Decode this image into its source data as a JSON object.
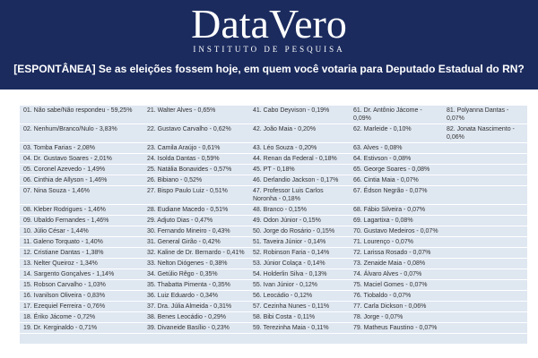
{
  "header": {
    "brand": "DataVero",
    "tagline": "INSTITUTO DE PESQUISA",
    "question": "[ESPONTÂNEA] Se as eleições fossem hoje, em quem você votaria para Deputado Estadual do RN?"
  },
  "table": {
    "rows": [
      [
        "01. Não sabe/Não respondeu - 59,25%",
        "21. Walter Alves - 0,65%",
        "41. Cabo Deyvison - 0,19%",
        "61. Dr. Antônio Jácome - 0,09%",
        "81. Polyanna Dantas - 0,07%"
      ],
      [
        "02. Nenhum/Branco/Nulo - 3,83%",
        "22. Gustavo Carvalho - 0,62%",
        "42. João Maia - 0,20%",
        "62. Marleide - 0,10%",
        "82. Jonata Nascimento - 0,06%"
      ],
      [
        "03. Tomba Farias - 2,08%",
        "23. Camila Araújo - 0,61%",
        "43. Léo Souza - 0,20%",
        "63. Alves - 0,08%",
        null
      ],
      [
        "04. Dr. Gustavo Soares - 2,01%",
        "24. Isolda Dantas - 0,59%",
        "44. Renan da Federal - 0,18%",
        "64. Estivson - 0,08%",
        null
      ],
      [
        "05. Coronel Azevedo - 1,49%",
        "25. Natália Bonavides - 0,57%",
        "45. PT - 0,18%",
        "65. George Soares - 0,08%",
        null
      ],
      [
        "06. Cinthia de Allyson - 1,46%",
        "26. Bibiano - 0,52%",
        "46. Derlandio Jackson - 0,17%",
        "66. Cintia Maia - 0,07%",
        null
      ],
      [
        "07. Nina Souza - 1,46%",
        "27. Bispo Paulo Luiz - 0,51%",
        "47. Professor Luis Carlos Noronha - 0,18%",
        "67. Édson Negrão - 0,07%",
        null
      ],
      [
        "08. Kleber Rodrigues - 1,46%",
        "28. Eudiane Macedo - 0,51%",
        "48. Branco - 0,15%",
        "68. Fábio Silveira - 0,07%",
        null
      ],
      [
        "09. Ubaldo Fernandes - 1,46%",
        "29. Adjuto Dias - 0,47%",
        "49. Odon Júnior - 0,15%",
        "69. Lagartixa - 0,08%",
        null
      ],
      [
        "10. Júlio César - 1,44%",
        "30. Fernando Mineiro - 0,43%",
        "50. Jorge do Rosário - 0,15%",
        "70. Gustavo Medeiros - 0,07%",
        null
      ],
      [
        "11. Galeno Torquato - 1,40%",
        "31. General Girão - 0,42%",
        "51. Taveira Júnior - 0,14%",
        "71. Lourenço - 0,07%",
        null
      ],
      [
        "12. Cristiane Dantas - 1,38%",
        "32. Kaline de Dr. Bernardo - 0,41%",
        "52. Robinson Faria - 0,14%",
        "72. Larissa Rosado - 0,07%",
        null
      ],
      [
        "13. Nelter Queiroz - 1,34%",
        "33. Nelton Diógenes - 0,38%",
        "53. Júnior Colaça - 0,14%",
        "73. Zenaide Maia - 0,08%",
        null
      ],
      [
        "14. Sargento Gonçalves - 1,14%",
        "34. Getúlio Rêgo - 0,35%",
        "54. Holderlin Silva - 0,13%",
        "74. Álvaro Alves - 0,07%",
        null
      ],
      [
        "15. Robson Carvalho - 1,03%",
        "35. Thabatta Pimenta - 0,35%",
        "55. Ivan Júnior - 0,12%",
        "75. Maciel Gomes - 0,07%",
        null
      ],
      [
        "16. Ivanilson Oliveira - 0,83%",
        "36. Luiz Eduardo - 0,34%",
        "56. Leocádio - 0,12%",
        "76. Tiobaldo - 0,07%",
        null
      ],
      [
        "17. Ezequiel Ferreira - 0,76%",
        "37. Dra. Júlia Almeida - 0,31%",
        "57. Cezinha Nunes - 0,11%",
        "77. Carla Dickson - 0,06%",
        null
      ],
      [
        "18. Ériko Jácome - 0,72%",
        "38. Benes Leocádio - 0,29%",
        "58. Bibi Costa - 0,11%",
        "78. Jorge - 0,07%",
        null
      ],
      [
        "19. Dr. Kerginaldo - 0,71%",
        "39. Divaneide Basílio - 0,23%",
        "59. Terezinha Maia - 0,11%",
        "79. Matheus Faustino - 0,07%",
        null
      ]
    ]
  }
}
